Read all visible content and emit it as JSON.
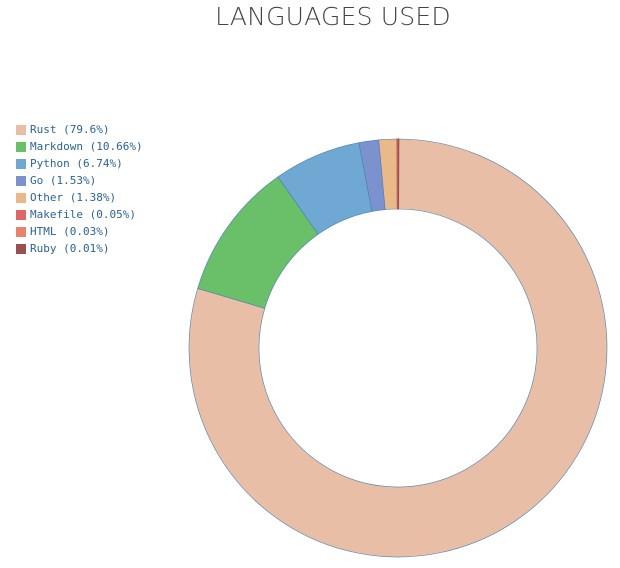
{
  "chart_data": {
    "type": "pie",
    "title": "LANGUAGES USED",
    "donut": true,
    "legend_position": "left",
    "slices": [
      {
        "name": "Rust",
        "value": 79.6,
        "color": "#e8bfa6",
        "label": "Rust (79.6%)"
      },
      {
        "name": "Markdown",
        "value": 10.66,
        "color": "#6abf69",
        "label": "Markdown (10.66%)"
      },
      {
        "name": "Python",
        "value": 6.74,
        "color": "#6fa8d3",
        "label": "Python (6.74%)"
      },
      {
        "name": "Go",
        "value": 1.53,
        "color": "#7b92cf",
        "label": "Go (1.53%)"
      },
      {
        "name": "Other",
        "value": 1.38,
        "color": "#e9b98a",
        "label": "Other (1.38%)"
      },
      {
        "name": "Makefile",
        "value": 0.05,
        "color": "#e06666",
        "label": "Makefile (0.05%)"
      },
      {
        "name": "HTML",
        "value": 0.03,
        "color": "#e8836b",
        "label": "HTML (0.03%)"
      },
      {
        "name": "Ruby",
        "value": 0.01,
        "color": "#9b4f4f",
        "label": "Ruby (0.01%)"
      }
    ]
  }
}
